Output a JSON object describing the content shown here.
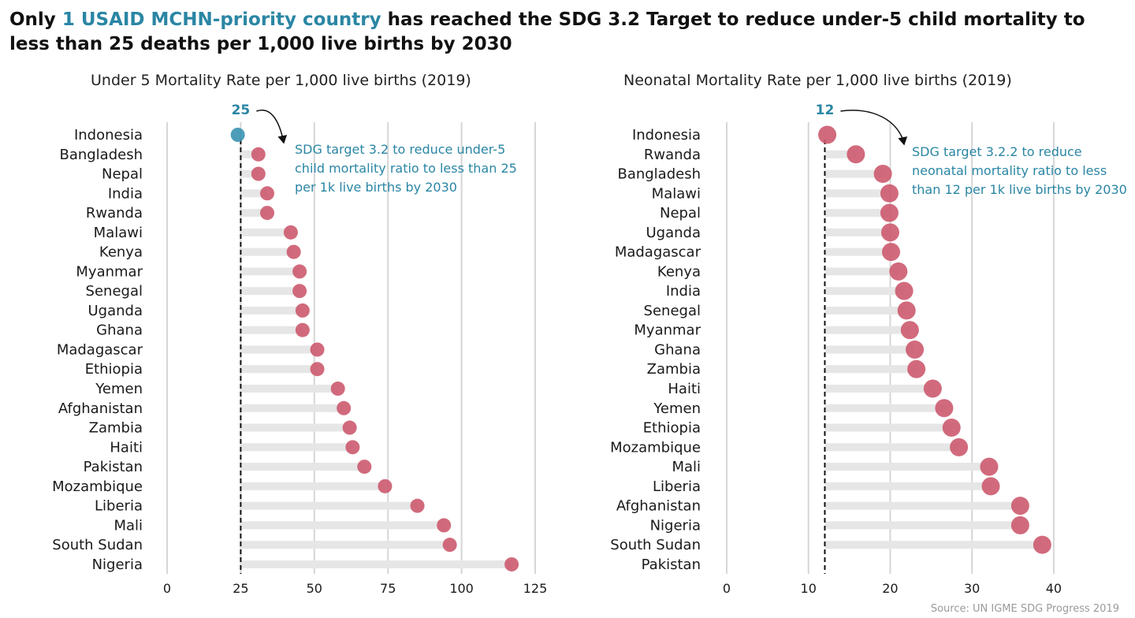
{
  "title": {
    "prefix": "Only ",
    "highlight": "1 USAID MCHN-priority country",
    "suffix": " has reached the SDG 3.2 Target to reduce under-5 child mortality to less than 25 deaths per 1,000 live births by 2030"
  },
  "source": "Source: UN IGME SDG Progress 2019",
  "colors": {
    "dot": "#cc5a6e",
    "highlight": "#3a92b2",
    "bar": "#e6e6e6",
    "grid": "#d6d6d6",
    "accent": "#2a86a4"
  },
  "chart_data": [
    {
      "type": "lollipop",
      "title": "Under 5 Mortality Rate per 1,000 live births (2019)",
      "xlim": [
        0,
        125
      ],
      "xticks": [
        0,
        25,
        50,
        75,
        100,
        125
      ],
      "target": 25,
      "target_label": "25",
      "annotation": [
        "SDG target 3.2 to reduce under-5",
        "child mortality ratio to less than 25",
        "per 1k live births by 2030"
      ],
      "categories": [
        "Indonesia",
        "Bangladesh",
        "Nepal",
        "India",
        "Rwanda",
        "Malawi",
        "Kenya",
        "Myanmar",
        "Senegal",
        "Uganda",
        "Ghana",
        "Madagascar",
        "Ethiopia",
        "Yemen",
        "Afghanistan",
        "Zambia",
        "Haiti",
        "Pakistan",
        "Mozambique",
        "Liberia",
        "Mali",
        "South Sudan",
        "Nigeria"
      ],
      "values": [
        24,
        31,
        31,
        34,
        34,
        42,
        43,
        45,
        45,
        46,
        46,
        51,
        51,
        58,
        60,
        62,
        63,
        67,
        74,
        85,
        94,
        96,
        117
      ],
      "highlighted": [
        "Indonesia"
      ]
    },
    {
      "type": "lollipop",
      "title": "Neonatal Mortality Rate per 1,000 live births (2019)",
      "xlim": [
        0,
        43
      ],
      "xticks": [
        0,
        10,
        20,
        30,
        40
      ],
      "target": 12,
      "target_label": "12",
      "annotation": [
        "SDG target 3.2.2 to reduce",
        "neonatal mortality ratio to less",
        "than 12 per 1k live births by 2030"
      ],
      "categories": [
        "Indonesia",
        "Rwanda",
        "Bangladesh",
        "Malawi",
        "Nepal",
        "Uganda",
        "Madagascar",
        "Kenya",
        "India",
        "Senegal",
        "Myanmar",
        "Ghana",
        "Zambia",
        "Haiti",
        "Yemen",
        "Ethiopia",
        "Mozambique",
        "Mali",
        "Liberia",
        "Afghanistan",
        "Nigeria",
        "South Sudan",
        "Pakistan"
      ],
      "values": [
        12.3,
        15.8,
        19.1,
        19.9,
        19.9,
        20.0,
        20.1,
        21.0,
        21.7,
        22.0,
        22.4,
        23.0,
        23.2,
        25.2,
        26.6,
        27.5,
        28.4,
        32.1,
        32.3,
        35.9,
        35.9,
        38.6,
        null
      ],
      "highlighted": []
    }
  ]
}
